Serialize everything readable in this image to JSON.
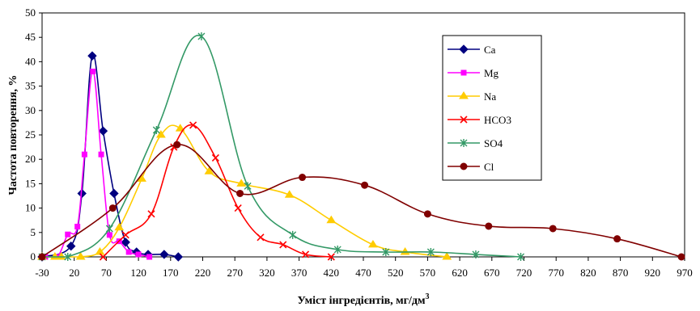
{
  "chart_data": {
    "type": "line",
    "title": "",
    "xlabel": "Уміст інгредієнтів, мг/дм",
    "xlabel_sup": "3",
    "ylabel": "Частота повторення, %",
    "xlim": [
      -30,
      970
    ],
    "ylim": [
      0,
      50
    ],
    "xticks": [
      "-30",
      "20",
      "70",
      "120",
      "170",
      "220",
      "270",
      "320",
      "370",
      "420",
      "470",
      "520",
      "570",
      "620",
      "670",
      "720",
      "770",
      "820",
      "870",
      "920",
      "970"
    ],
    "yticks": [
      "0",
      "5",
      "10",
      "15",
      "20",
      "25",
      "30",
      "35",
      "40",
      "45",
      "50"
    ],
    "grid": false,
    "legend_position": "right",
    "series": [
      {
        "name": "Ca",
        "color": "#000080",
        "marker": "diamond",
        "x": [
          -30,
          15,
          32,
          48,
          65,
          82,
          100,
          117,
          135,
          160,
          182
        ],
        "y": [
          0,
          2.2,
          13,
          41.2,
          25.8,
          13,
          3,
          1,
          0.5,
          0.5,
          0
        ]
      },
      {
        "name": "Mg",
        "color": "#ff00ff",
        "marker": "square",
        "x": [
          -25,
          -6,
          10,
          25,
          36,
          49,
          62,
          75,
          90,
          105,
          120,
          137
        ],
        "y": [
          0,
          0,
          4.6,
          6.2,
          21,
          38,
          21,
          4.5,
          3.2,
          1,
          0.5,
          0
        ]
      },
      {
        "name": "Na",
        "color": "#ffcc00",
        "marker": "triangle",
        "x": [
          -30,
          -10,
          0,
          30,
          60,
          90,
          125,
          155,
          185,
          230,
          280,
          355,
          420,
          485,
          535,
          600
        ],
        "y": [
          0,
          0,
          0,
          0,
          1,
          6,
          16,
          25,
          26.3,
          17.5,
          15,
          12.7,
          7.5,
          2.5,
          1,
          0
        ]
      },
      {
        "name": "HCO3",
        "color": "#ff0000",
        "marker": "x",
        "x": [
          65,
          100,
          140,
          175,
          205,
          240,
          275,
          310,
          345,
          380,
          420
        ],
        "y": [
          0,
          4.5,
          8.8,
          22.5,
          27,
          20.3,
          10,
          4,
          2.5,
          0.5,
          0
        ]
      },
      {
        "name": "SO4",
        "color": "#339966",
        "marker": "star",
        "x": [
          -30,
          10,
          75,
          148,
          218,
          290,
          360,
          430,
          505,
          575,
          645,
          715
        ],
        "y": [
          0,
          0,
          5.8,
          26,
          45.2,
          14.5,
          4.5,
          1.5,
          1,
          1,
          0.5,
          0
        ]
      },
      {
        "name": "Cl",
        "color": "#800000",
        "marker": "circle",
        "x": [
          -30,
          80,
          180,
          278,
          375,
          472,
          570,
          665,
          765,
          865,
          965
        ],
        "y": [
          0,
          10,
          23,
          13,
          16.3,
          14.7,
          8.8,
          6.3,
          5.8,
          3.7,
          0
        ]
      }
    ]
  }
}
